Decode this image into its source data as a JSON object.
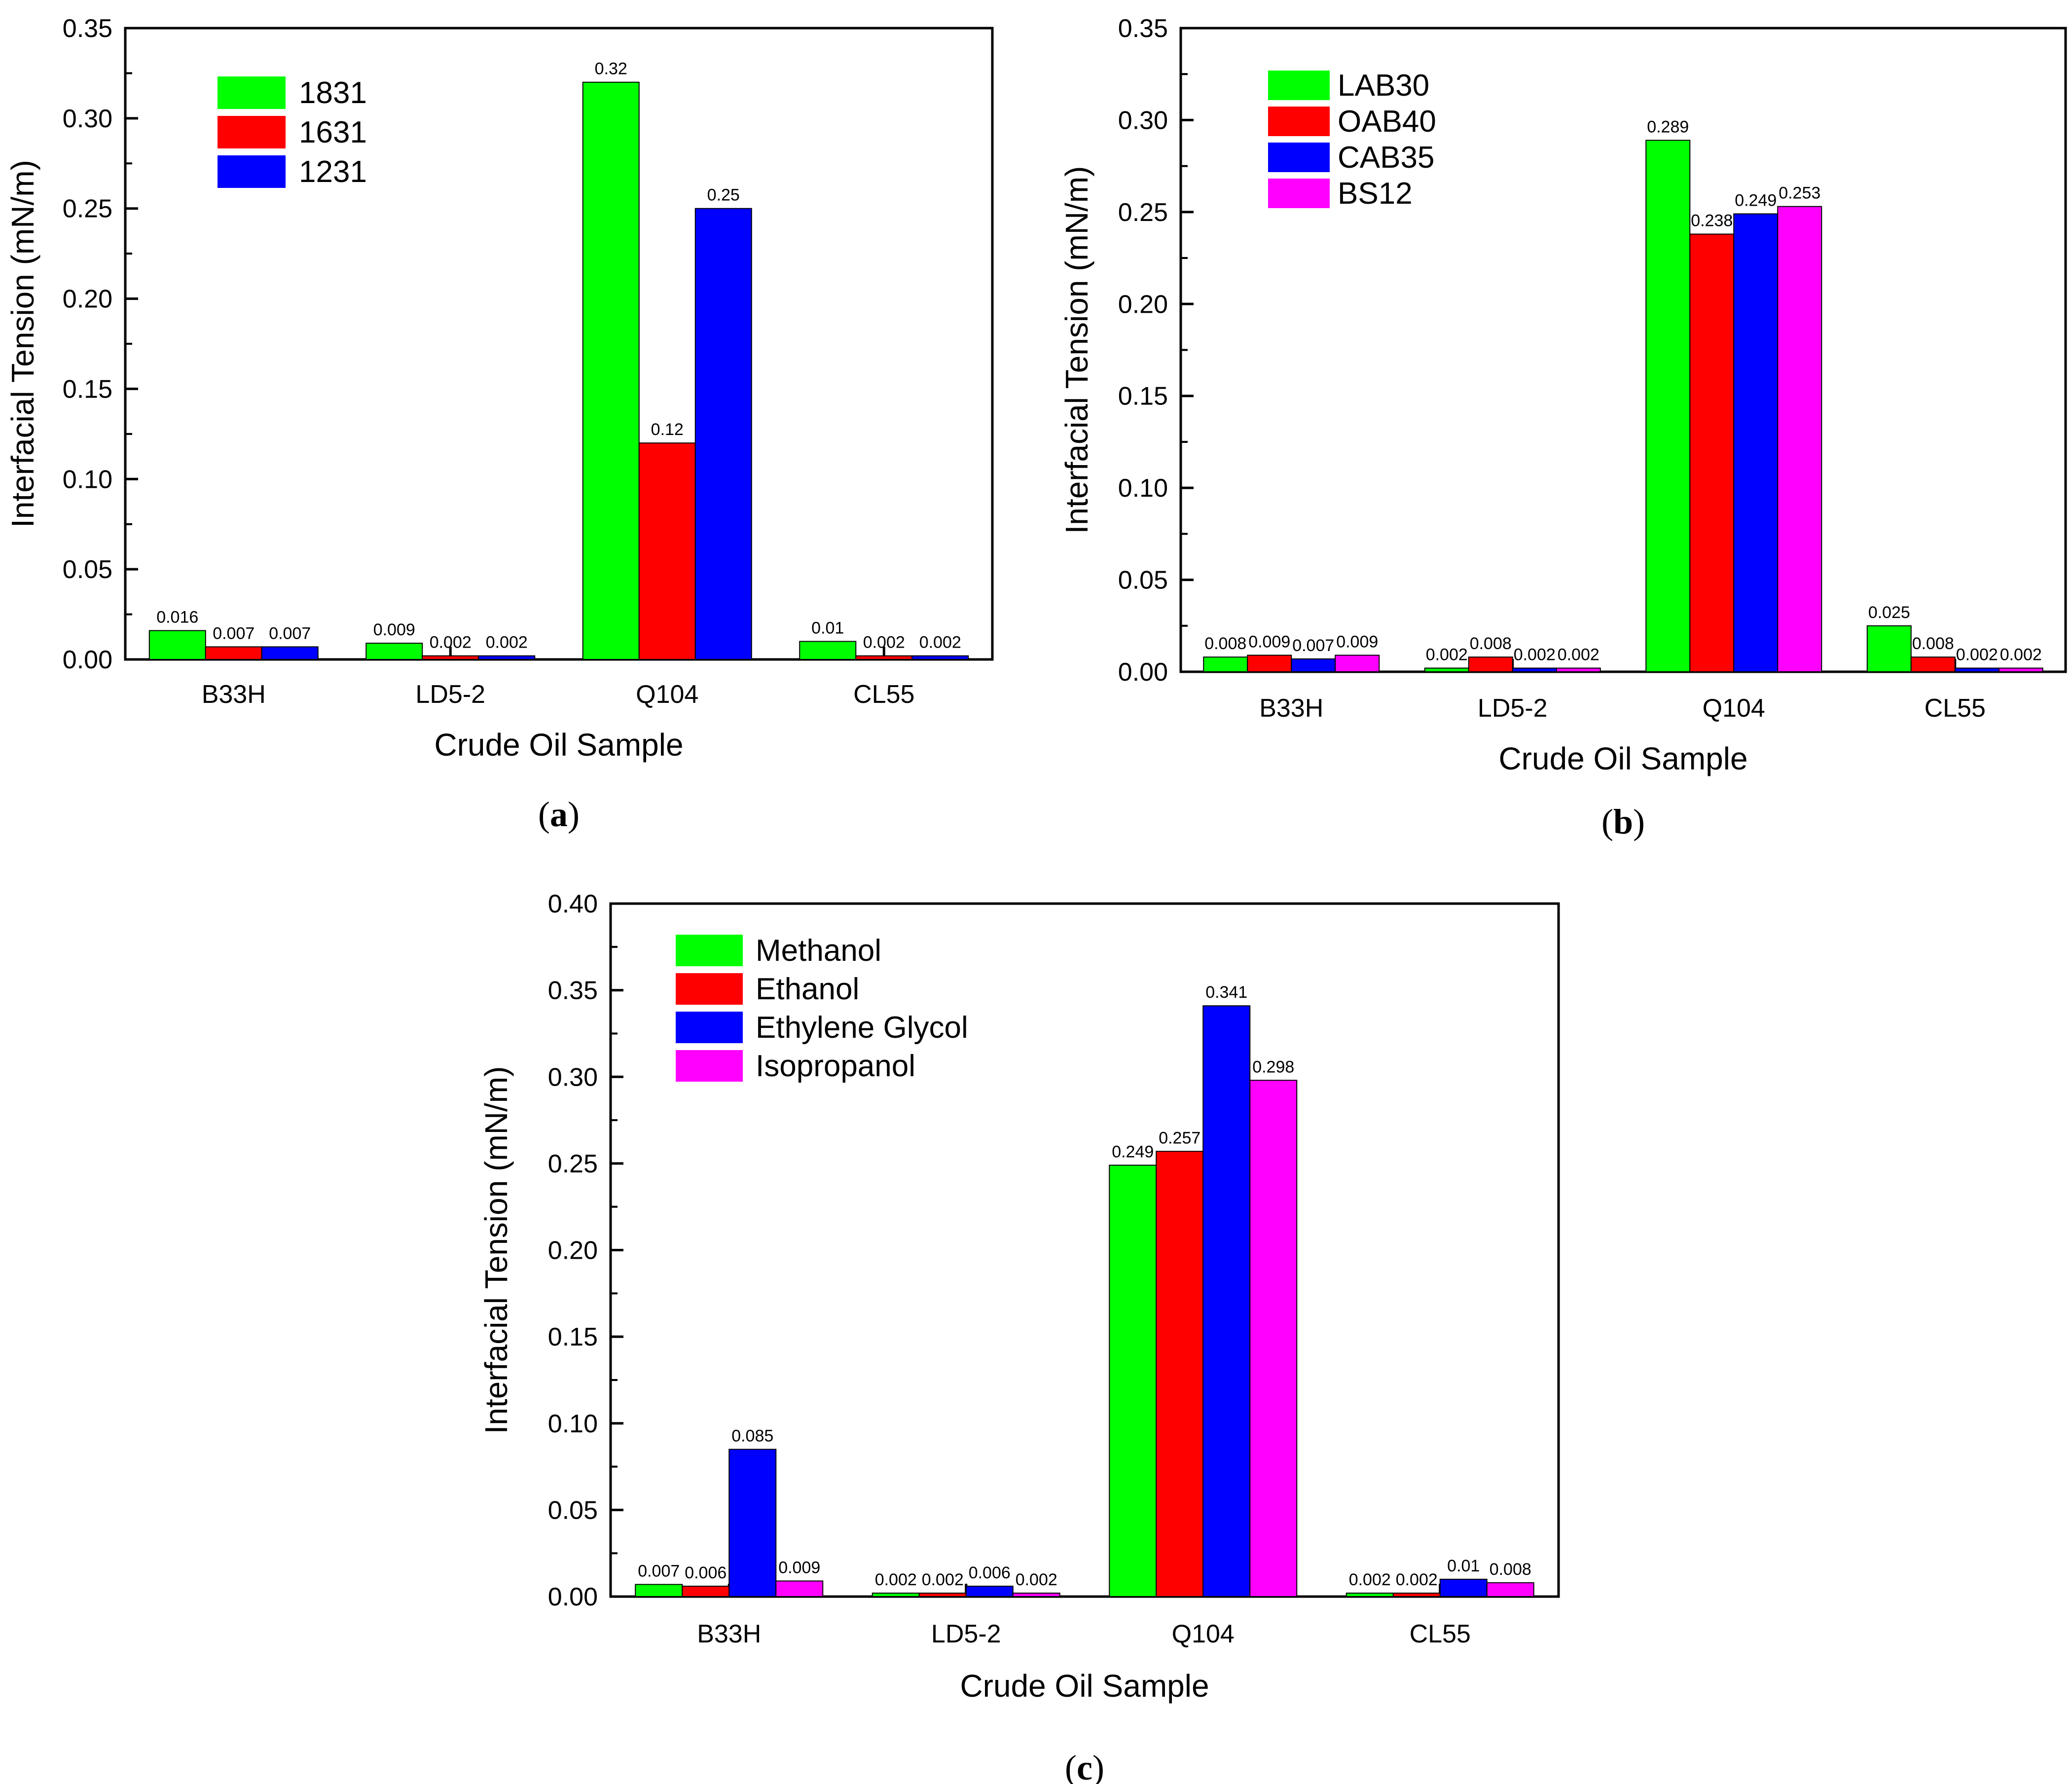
{
  "chart_data": [
    {
      "type": "bar",
      "panel_label": "a",
      "xlabel": "Crude Oil Sample",
      "ylabel": "Interfacial Tension (mN/m)",
      "ylim": [
        0,
        0.35
      ],
      "yticks": [
        "0.00",
        "0.05",
        "0.10",
        "0.15",
        "0.20",
        "0.25",
        "0.30",
        "0.35"
      ],
      "categories": [
        "B33H",
        "LD5-2",
        "Q104",
        "CL55"
      ],
      "legend_position": "top-left",
      "series": [
        {
          "name": "1831",
          "color": "#00ff00",
          "values": [
            0.016,
            0.009,
            0.32,
            0.01
          ],
          "labels": [
            "0.016",
            "0.009",
            "0.32",
            "0.01"
          ]
        },
        {
          "name": "1631",
          "color": "#ff0000",
          "values": [
            0.007,
            0.002,
            0.12,
            0.002
          ],
          "labels": [
            "0.007",
            "0.002",
            "0.12",
            "0.002"
          ]
        },
        {
          "name": "1231",
          "color": "#0000ff",
          "values": [
            0.007,
            0.002,
            0.25,
            0.002
          ],
          "labels": [
            "0.007",
            "0.002",
            "0.25",
            "0.002"
          ]
        }
      ]
    },
    {
      "type": "bar",
      "panel_label": "b",
      "xlabel": "Crude Oil Sample",
      "ylabel": "Interfacial Tension (mN/m)",
      "ylim": [
        0,
        0.35
      ],
      "yticks": [
        "0.00",
        "0.05",
        "0.10",
        "0.15",
        "0.20",
        "0.25",
        "0.30",
        "0.35"
      ],
      "categories": [
        "B33H",
        "LD5-2",
        "Q104",
        "CL55"
      ],
      "legend_position": "top-left",
      "series": [
        {
          "name": "LAB30",
          "color": "#00ff00",
          "values": [
            0.008,
            0.002,
            0.289,
            0.025
          ],
          "labels": [
            "0.008",
            "0.002",
            "0.289",
            "0.025"
          ]
        },
        {
          "name": "OAB40",
          "color": "#ff0000",
          "values": [
            0.009,
            0.008,
            0.238,
            0.008
          ],
          "labels": [
            "0.009",
            "0.008",
            "0.238",
            "0.008"
          ]
        },
        {
          "name": "CAB35",
          "color": "#0000ff",
          "values": [
            0.007,
            0.002,
            0.249,
            0.002
          ],
          "labels": [
            "0.007",
            "0.002",
            "0.249",
            "0.002"
          ]
        },
        {
          "name": "BS12",
          "color": "#ff00ff",
          "values": [
            0.009,
            0.002,
            0.253,
            0.002
          ],
          "labels": [
            "0.009",
            "0.002",
            "0.253",
            "0.002"
          ]
        }
      ]
    },
    {
      "type": "bar",
      "panel_label": "c",
      "xlabel": "Crude Oil Sample",
      "ylabel": "Interfacial Tension (mN/m)",
      "ylim": [
        0,
        0.4
      ],
      "yticks": [
        "0.00",
        "0.05",
        "0.10",
        "0.15",
        "0.20",
        "0.25",
        "0.30",
        "0.35",
        "0.40"
      ],
      "categories": [
        "B33H",
        "LD5-2",
        "Q104",
        "CL55"
      ],
      "legend_position": "top-left",
      "series": [
        {
          "name": "Methanol",
          "color": "#00ff00",
          "values": [
            0.007,
            0.002,
            0.249,
            0.002
          ],
          "labels": [
            "0.007",
            "0.002",
            "0.249",
            "0.002"
          ]
        },
        {
          "name": "Ethanol",
          "color": "#ff0000",
          "values": [
            0.006,
            0.002,
            0.257,
            0.002
          ],
          "labels": [
            "0.006",
            "0.002",
            "0.257",
            "0.002"
          ]
        },
        {
          "name": "Ethylene Glycol",
          "color": "#0000ff",
          "values": [
            0.085,
            0.006,
            0.341,
            0.01
          ],
          "labels": [
            "0.085",
            "0.006",
            "0.341",
            "0.01"
          ]
        },
        {
          "name": "Isopropanol",
          "color": "#ff00ff",
          "values": [
            0.009,
            0.002,
            0.298,
            0.008
          ],
          "labels": [
            "0.009",
            "0.002",
            "0.298",
            "0.008"
          ]
        }
      ]
    }
  ]
}
